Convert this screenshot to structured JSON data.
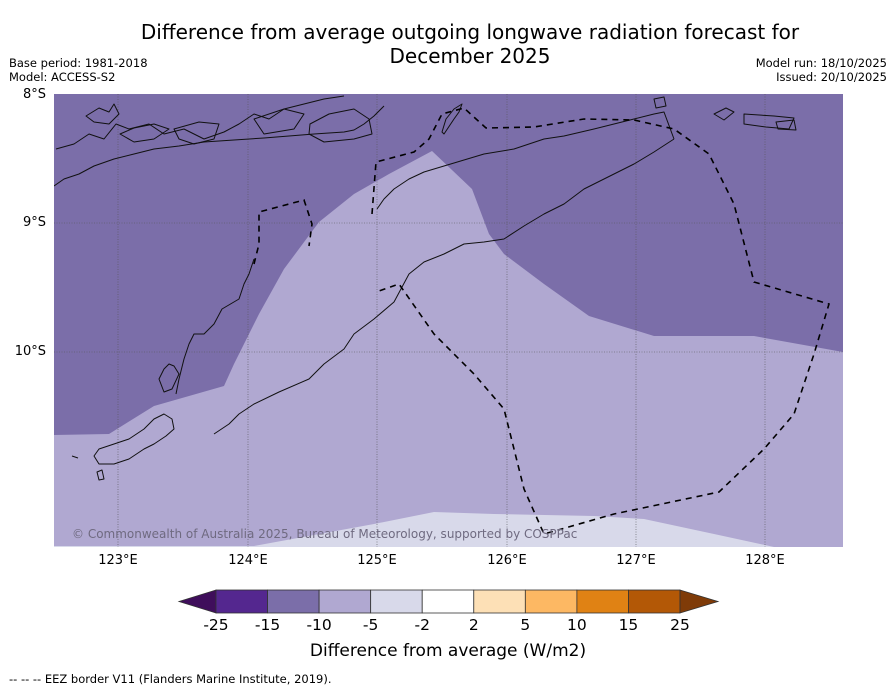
{
  "title": {
    "line1": "Difference from average outgoing longwave radiation forecast for",
    "line2": "December 2025"
  },
  "meta_left": {
    "base_period": "Base period: 1981-2018",
    "model": "Model: ACCESS-S2"
  },
  "meta_right": {
    "model_run": "Model run: 18/10/2025",
    "issued": "Issued: 20/10/2025"
  },
  "map": {
    "lat_labels": [
      "8°S",
      "9°S",
      "10°S"
    ],
    "lon_labels": [
      "123°E",
      "124°E",
      "125°E",
      "126°E",
      "127°E",
      "128°E"
    ],
    "copyright": "© Commonwealth of Australia 2025, Bureau of Meteorology, supported by COSPPac",
    "extent": {
      "lon_min": 122.5,
      "lon_max": 128.6,
      "lat_min": -11.5,
      "lat_max": -8.0
    }
  },
  "colorbar": {
    "title": "Difference from average (W/m2)",
    "ticks": [
      "-25",
      "-15",
      "-10",
      "-5",
      "-2",
      "2",
      "5",
      "10",
      "15",
      "25"
    ],
    "colors": [
      "#3f0e5b",
      "#54278f",
      "#7b6ea9",
      "#b0a8d1",
      "#d8d9ea",
      "#ffffff",
      "#fde0b6",
      "#fdb863",
      "#e08214",
      "#b35806",
      "#7f3b08"
    ]
  },
  "footer": "--  --  -- EEZ border V11 (Flanders Marine Institute, 2019)."
}
